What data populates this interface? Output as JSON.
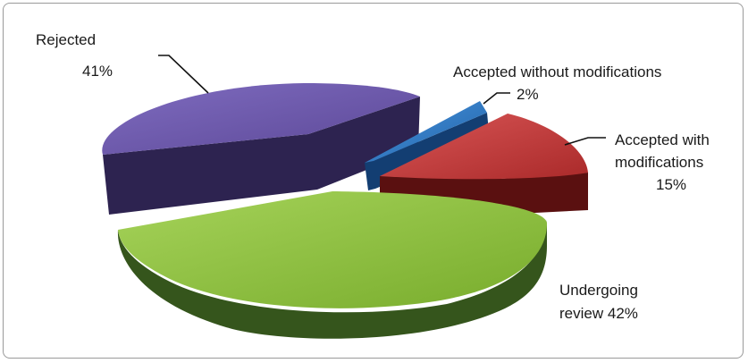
{
  "chart_data": {
    "type": "pie",
    "three_d": true,
    "exploded": true,
    "title": "",
    "legend": "none",
    "slices": [
      {
        "label": "Rejected",
        "value": 41,
        "value_text": "41%",
        "color": "#6e58a8"
      },
      {
        "label": "Accepted without modifications",
        "value": 2,
        "value_text": "2%",
        "color": "#2f78c2"
      },
      {
        "label": "Accepted with modifications",
        "value": 15,
        "value_text": "15%",
        "color": "#c23b3b"
      },
      {
        "label": "Undergoing review",
        "value": 42,
        "value_text": "42%",
        "color": "#8cbf3f"
      }
    ]
  }
}
